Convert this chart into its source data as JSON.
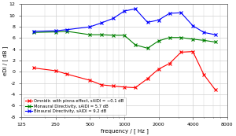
{
  "freqs": [
    160,
    250,
    315,
    500,
    630,
    800,
    1000,
    1250,
    1600,
    2000,
    2500,
    3150,
    4000,
    5000,
    6300
  ],
  "red": [
    0.7,
    0.2,
    -0.4,
    -1.5,
    -2.3,
    -2.5,
    -2.7,
    -2.8,
    -1.2,
    0.5,
    1.5,
    3.5,
    3.6,
    -0.5,
    -3.2
  ],
  "green": [
    7.0,
    7.1,
    7.2,
    6.6,
    6.6,
    6.5,
    6.5,
    4.8,
    4.2,
    5.5,
    6.1,
    6.1,
    5.8,
    5.6,
    5.3
  ],
  "blue": [
    7.2,
    7.3,
    7.5,
    8.0,
    8.7,
    9.5,
    10.8,
    11.2,
    8.8,
    9.2,
    10.4,
    10.5,
    8.2,
    7.0,
    6.6
  ],
  "red_color": "#ff0000",
  "green_color": "#008000",
  "blue_color": "#0000ff",
  "xlabel": "frequency / [ Hz ]",
  "ylabel": "eDI / [ dB ]",
  "ylim": [
    -8,
    12
  ],
  "yticks": [
    -8,
    -6,
    -4,
    -2,
    0,
    2,
    4,
    6,
    8,
    10,
    12
  ],
  "xlim_left": 125,
  "xlim_right": 8000,
  "xtick_freqs": [
    125,
    250,
    500,
    1000,
    2000,
    4000,
    8000
  ],
  "xtick_labels": [
    "125",
    "250",
    "500",
    "1000",
    "2000",
    "4000",
    "8000"
  ],
  "legend_red": "Omnidir. with pinna effect, sAIDI = −0.1 dB",
  "legend_green": "Monaural Directivity, sAIDI = 5.7 dB",
  "legend_blue": "Binaural Directivity, sAIDI = 9.2 dB",
  "grid_color": "#d0d0d0",
  "bg_color": "#ffffff",
  "fig_bg": "#ffffff"
}
